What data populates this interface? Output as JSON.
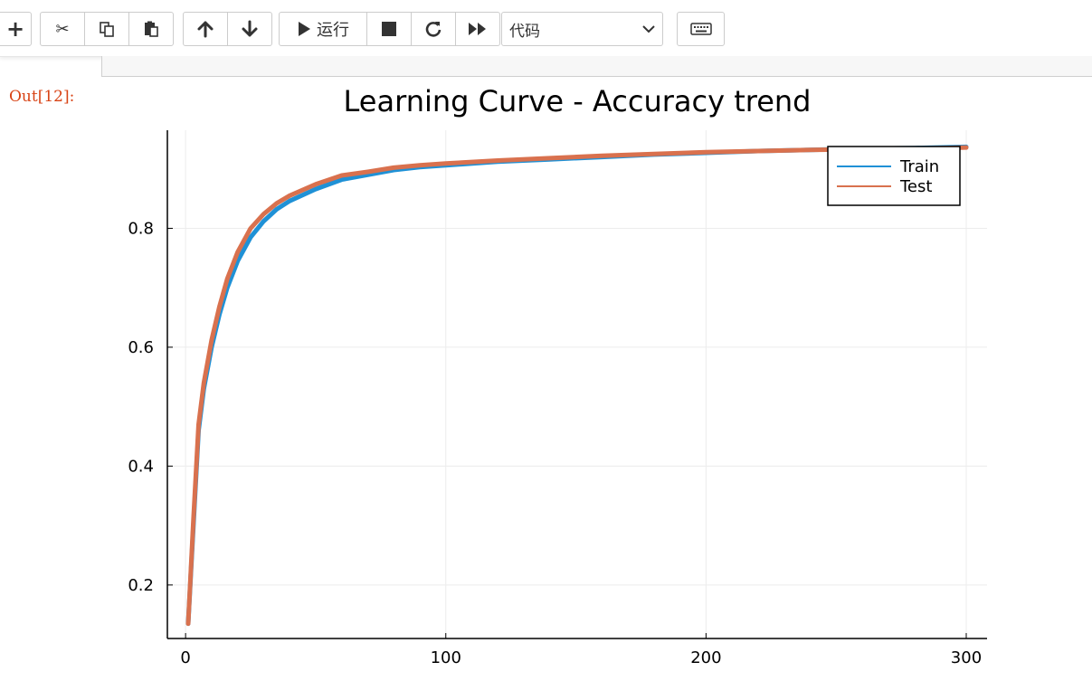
{
  "toolbar": {
    "add_icon": "plus-icon",
    "cut_icon": "scissors-icon",
    "copy_icon": "copy-icon",
    "paste_icon": "paste-icon",
    "move_up_icon": "arrow-up-icon",
    "move_down_icon": "arrow-down-icon",
    "run_label": "运行",
    "stop_icon": "stop-icon",
    "restart_icon": "restart-icon",
    "run_all_icon": "fast-forward-icon",
    "cell_type": "代码",
    "keyboard_icon": "keyboard-icon"
  },
  "output": {
    "prompt": "Out[12]:"
  },
  "chart_data": {
    "type": "line",
    "title": "Learning Curve - Accuracy trend",
    "xlabel": "",
    "ylabel": "",
    "xlim": [
      -7,
      308
    ],
    "ylim": [
      0.11,
      0.965
    ],
    "xticks": [
      0,
      100,
      200,
      300
    ],
    "yticks": [
      0.2,
      0.4,
      0.6,
      0.8
    ],
    "grid": true,
    "legend": "top-right",
    "series": [
      {
        "name": "Train",
        "color": "#1f91d6",
        "x": [
          1,
          3,
          5,
          7,
          10,
          13,
          16,
          20,
          25,
          30,
          35,
          40,
          50,
          60,
          70,
          80,
          90,
          100,
          120,
          140,
          160,
          180,
          200,
          220,
          240,
          260,
          280,
          300
        ],
        "y": [
          0.135,
          0.3,
          0.46,
          0.53,
          0.6,
          0.655,
          0.7,
          0.745,
          0.785,
          0.812,
          0.832,
          0.846,
          0.866,
          0.882,
          0.89,
          0.898,
          0.903,
          0.906,
          0.912,
          0.916,
          0.92,
          0.924,
          0.927,
          0.93,
          0.932,
          0.934,
          0.935,
          0.937
        ]
      },
      {
        "name": "Test",
        "color": "#d9714e",
        "x": [
          1,
          3,
          5,
          7,
          10,
          13,
          16,
          20,
          25,
          30,
          35,
          40,
          50,
          60,
          70,
          80,
          90,
          100,
          120,
          140,
          160,
          180,
          200,
          220,
          240,
          260,
          280,
          300
        ],
        "y": [
          0.135,
          0.31,
          0.47,
          0.54,
          0.612,
          0.668,
          0.715,
          0.76,
          0.8,
          0.824,
          0.842,
          0.855,
          0.874,
          0.889,
          0.895,
          0.902,
          0.906,
          0.909,
          0.914,
          0.918,
          0.922,
          0.925,
          0.928,
          0.93,
          0.932,
          0.933,
          0.934,
          0.936
        ]
      }
    ]
  }
}
